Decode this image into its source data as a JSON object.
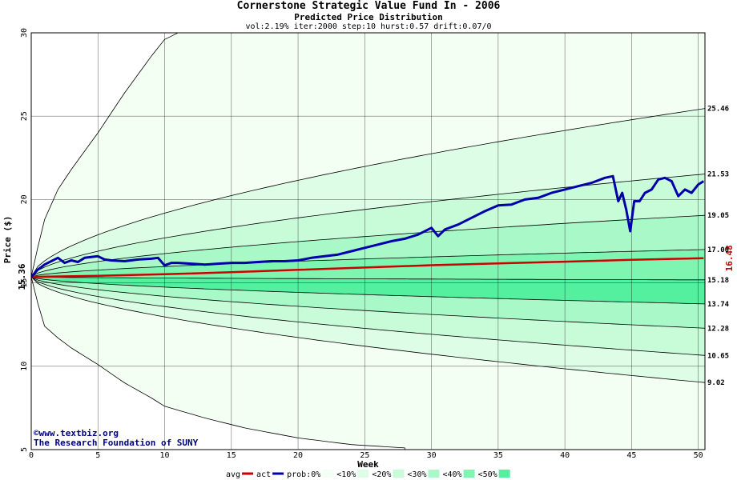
{
  "header": {
    "title": "Cornerstone Strategic Value Fund In - 2006",
    "subtitle": "Predicted Price Distribution",
    "params": "vol:2.19% iter:2000 step:10 hurst:0.57 drift:0.07/0"
  },
  "watermark": {
    "line1": "©www.textbiz.org",
    "line2": "The Research Foundation of SUNY"
  },
  "chart_data": {
    "type": "area",
    "title": "Cornerstone Strategic Value Fund In - 2006",
    "subtitle": "Predicted Price Distribution",
    "xlabel": "Week",
    "ylabel": "Price ($)",
    "xlim": [
      0,
      50.5
    ],
    "ylim": [
      5,
      30
    ],
    "xticks": [
      0,
      5,
      10,
      15,
      20,
      25,
      30,
      35,
      40,
      45,
      50
    ],
    "yticks": [
      5,
      10,
      15,
      20,
      25,
      30
    ],
    "grid": true,
    "start_price_label": "15.36",
    "start_price": 15.36,
    "actual_end_label": "16.48",
    "band_colors": {
      "outer": "#f3fff3",
      "b10": "#ddfde6",
      "b20": "#c8fbd8",
      "b30": "#a8f8c8",
      "b40": "#7ff5b2",
      "b50": "#55efa0"
    },
    "percentile_curves": [
      {
        "end": 25.46,
        "end_label": "25.46",
        "band": "b10"
      },
      {
        "end": 21.53,
        "end_label": "21.53",
        "band": "b20"
      },
      {
        "end": 19.05,
        "end_label": "19.05",
        "band": "b30"
      },
      {
        "end": 17.0,
        "end_label": "17.00",
        "band": "b40"
      },
      {
        "end": 15.18,
        "end_label": "15.18",
        "band": "b50"
      },
      {
        "end": 13.74,
        "end_label": "13.74",
        "band": "b50"
      },
      {
        "end": 12.28,
        "end_label": "12.28",
        "band": "b40"
      },
      {
        "end": 10.65,
        "end_label": "10.65",
        "band": "b30"
      },
      {
        "end": 9.02,
        "end_label": "9.02",
        "band": "b20"
      }
    ],
    "outer_upper": {
      "x": [
        0,
        0.3,
        1,
        2,
        3,
        5,
        7,
        9,
        10,
        11
      ],
      "y": [
        15.36,
        16.5,
        18.8,
        20.6,
        21.8,
        24.0,
        26.4,
        28.6,
        29.6,
        30.0
      ]
    },
    "outer_lower": {
      "x": [
        0,
        0.3,
        1,
        2,
        3,
        5,
        7,
        9,
        10,
        13,
        16,
        20,
        24,
        28
      ],
      "y": [
        15.36,
        14.3,
        12.4,
        11.7,
        11.1,
        10.1,
        9.0,
        8.1,
        7.6,
        6.9,
        6.3,
        5.7,
        5.3,
        5.1
      ]
    },
    "series": [
      {
        "name": "avg",
        "color": "#cc0000",
        "x": [
          0,
          5,
          10,
          15,
          20,
          25,
          30,
          35,
          40,
          45,
          50.4
        ],
        "y": [
          15.36,
          15.42,
          15.52,
          15.64,
          15.78,
          15.92,
          16.06,
          16.17,
          16.27,
          16.38,
          16.48
        ]
      },
      {
        "name": "act",
        "color": "#0000aa",
        "x": [
          0,
          0.5,
          1,
          1.5,
          2,
          2.5,
          3,
          3.5,
          4,
          4.5,
          5,
          5.5,
          6,
          7,
          8,
          9,
          9.5,
          10,
          10.5,
          11,
          12,
          13,
          14,
          15,
          16,
          17,
          18,
          19,
          20,
          21,
          22,
          23,
          24,
          25,
          26,
          27,
          28,
          29,
          30,
          30.5,
          31,
          32,
          33,
          34,
          35,
          36,
          37,
          38,
          39,
          40,
          41,
          42,
          43,
          43.6,
          44,
          44.3,
          44.6,
          44.9,
          45.2,
          45.6,
          46,
          46.5,
          47,
          47.5,
          48,
          48.5,
          49,
          49.5,
          50,
          50.4
        ],
        "y": [
          15.36,
          15.8,
          16.1,
          16.3,
          16.5,
          16.2,
          16.35,
          16.25,
          16.5,
          16.55,
          16.6,
          16.4,
          16.35,
          16.3,
          16.4,
          16.45,
          16.5,
          16.05,
          16.2,
          16.2,
          16.15,
          16.1,
          16.15,
          16.2,
          16.2,
          16.25,
          16.3,
          16.3,
          16.35,
          16.5,
          16.6,
          16.7,
          16.9,
          17.1,
          17.3,
          17.5,
          17.65,
          17.9,
          18.3,
          17.8,
          18.2,
          18.5,
          18.9,
          19.3,
          19.65,
          19.7,
          20.0,
          20.1,
          20.4,
          20.6,
          20.8,
          21.0,
          21.3,
          21.4,
          19.9,
          20.4,
          19.4,
          18.1,
          19.9,
          19.9,
          20.4,
          20.6,
          21.2,
          21.3,
          21.1,
          20.2,
          20.6,
          20.4,
          20.9,
          21.1
        ]
      }
    ],
    "legend": {
      "position": "bottom-center",
      "items": [
        {
          "label": "avg",
          "kind": "line",
          "color": "#cc0000"
        },
        {
          "label": "act",
          "kind": "line",
          "color": "#0000aa"
        },
        {
          "label": "prob:0%",
          "kind": "swatch",
          "color": "#f3fff3"
        },
        {
          "label": "<10%",
          "kind": "swatch",
          "color": "#ddfde6"
        },
        {
          "label": "<20%",
          "kind": "swatch",
          "color": "#c8fbd8"
        },
        {
          "label": "<30%",
          "kind": "swatch",
          "color": "#a8f8c8"
        },
        {
          "label": "<40%",
          "kind": "swatch",
          "color": "#7ff5b2"
        },
        {
          "label": "<50%",
          "kind": "swatch",
          "color": "#55efa0"
        }
      ]
    }
  }
}
